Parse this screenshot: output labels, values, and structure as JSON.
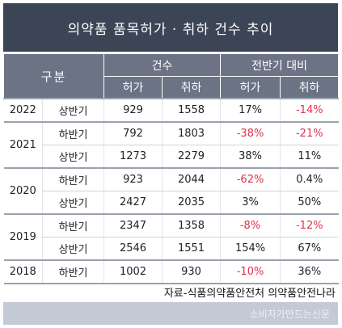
{
  "title": "의약품 품목허가 · 취하 건수 추이",
  "header": {
    "gubun": "구분",
    "count_group": "건수",
    "change_group": "전반기 대비",
    "count_approval": "허가",
    "count_withdrawal": "취하",
    "change_approval": "허가",
    "change_withdrawal": "취하"
  },
  "rows": [
    {
      "year": "2022",
      "half": "상반기",
      "approval": "929",
      "withdrawal": "1558",
      "approval_change": "17%",
      "withdrawal_change": "-14%"
    },
    {
      "year": "2021",
      "half": "하반기",
      "approval": "792",
      "withdrawal": "1803",
      "approval_change": "-38%",
      "withdrawal_change": "-21%"
    },
    {
      "year": "",
      "half": "상반기",
      "approval": "1273",
      "withdrawal": "2279",
      "approval_change": "38%",
      "withdrawal_change": "11%"
    },
    {
      "year": "2020",
      "half": "하반기",
      "approval": "923",
      "withdrawal": "2044",
      "approval_change": "-62%",
      "withdrawal_change": "0.4%"
    },
    {
      "year": "",
      "half": "상반기",
      "approval": "2427",
      "withdrawal": "2035",
      "approval_change": "3%",
      "withdrawal_change": "50%"
    },
    {
      "year": "2019",
      "half": "하반기",
      "approval": "2347",
      "withdrawal": "1358",
      "approval_change": "-8%",
      "withdrawal_change": "-12%"
    },
    {
      "year": "",
      "half": "상반기",
      "approval": "2546",
      "withdrawal": "1551",
      "approval_change": "154%",
      "withdrawal_change": "67%"
    },
    {
      "year": "2018",
      "half": "하반기",
      "approval": "1002",
      "withdrawal": "930",
      "approval_change": "-10%",
      "withdrawal_change": "36%"
    }
  ],
  "source": "자료-식품의약품안전처 의약품안전나라",
  "brand": "소비자가만드는신문",
  "colors": {
    "header_dark": "#3c4556",
    "header_mid": "#6b7384",
    "negative": "#e0314a",
    "brand_bar": "#c3cad6"
  }
}
